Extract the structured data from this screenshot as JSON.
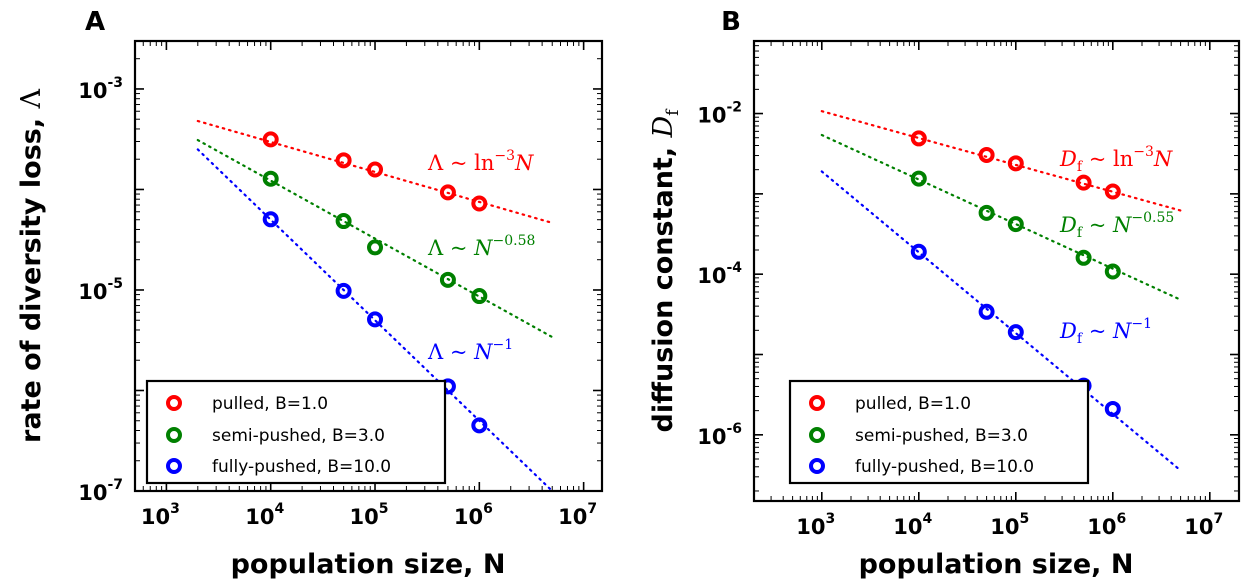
{
  "chart_data": [
    {
      "panel": "A",
      "type": "scatter",
      "scale": "log-log",
      "xlabel": "population size, N",
      "ylabel": "rate of diversity loss, Λ",
      "ylabel_text": "rate of diversity loss, ",
      "ylabel_symbol": "Λ",
      "xlim": [
        500,
        15000000
      ],
      "ylim": [
        1e-07,
        0.003
      ],
      "x_ticks": [
        {
          "base": "10",
          "exp": "3"
        },
        {
          "base": "10",
          "exp": "4"
        },
        {
          "base": "10",
          "exp": "5"
        },
        {
          "base": "10",
          "exp": "6"
        },
        {
          "base": "10",
          "exp": "7"
        }
      ],
      "y_ticks": [
        {
          "base": "10",
          "exp": "-3"
        },
        {
          "base": "10",
          "exp": "-5"
        },
        {
          "base": "10",
          "exp": "-7"
        }
      ],
      "y_tick_values": [
        0.001,
        1e-05,
        1e-07
      ],
      "grid": false,
      "legend_position": "bottom-left",
      "series": [
        {
          "name": "pulled, B=1.0",
          "color": "#ff0000",
          "x": [
            10000,
            50000,
            100000,
            500000,
            1000000
          ],
          "y": [
            0.000315,
            0.000195,
            0.000158,
            9.35e-05,
            7.25e-05
          ],
          "fit_x": [
            2000,
            5000000
          ],
          "fit_y": [
            0.00048,
            4.65e-05
          ],
          "annotation": {
            "lhs": "Λ",
            "op": "~",
            "fn": "ln",
            "sup": "−3",
            "rhs": "N"
          }
        },
        {
          "name": "semi-pushed, B=3.0",
          "color": "#008000",
          "x": [
            10000,
            50000,
            100000,
            500000,
            1000000
          ],
          "y": [
            0.000128,
            4.85e-05,
            2.65e-05,
            1.26e-05,
            8.7e-06
          ],
          "fit_x": [
            2000,
            5000000
          ],
          "fit_y": [
            0.00031,
            3.4e-06
          ],
          "annotation": {
            "lhs": "Λ",
            "op": "~",
            "rhs": "N",
            "sup": "−0.58"
          }
        },
        {
          "name": "fully-pushed, B=10.0",
          "color": "#0000ff",
          "x": [
            10000,
            50000,
            100000,
            500000,
            1000000
          ],
          "y": [
            5.05e-05,
            9.8e-06,
            5.1e-06,
            1.1e-06,
            4.5e-07
          ],
          "fit_x": [
            2000,
            5000000
          ],
          "fit_y": [
            0.00025,
            1e-07
          ],
          "annotation": {
            "lhs": "Λ",
            "op": "~",
            "rhs": "N",
            "sup": "−1"
          }
        }
      ]
    },
    {
      "panel": "B",
      "type": "scatter",
      "scale": "log-log",
      "xlabel": "population size, N",
      "ylabel": "diffusion constant, Df",
      "ylabel_text": "diffusion constant, ",
      "ylabel_symbol": "D",
      "ylabel_sub": "f",
      "xlim": [
        200,
        20000000
      ],
      "ylim": [
        1.5e-07,
        0.08
      ],
      "x_ticks": [
        {
          "base": "10",
          "exp": "3"
        },
        {
          "base": "10",
          "exp": "4"
        },
        {
          "base": "10",
          "exp": "5"
        },
        {
          "base": "10",
          "exp": "6"
        },
        {
          "base": "10",
          "exp": "7"
        }
      ],
      "y_ticks": [
        {
          "base": "10",
          "exp": "-2"
        },
        {
          "base": "10",
          "exp": "-4"
        },
        {
          "base": "10",
          "exp": "-6"
        }
      ],
      "y_tick_values": [
        0.01,
        0.0001,
        1e-06
      ],
      "grid": false,
      "legend_position": "bottom-left",
      "series": [
        {
          "name": "pulled, B=1.0",
          "color": "#ff0000",
          "x": [
            10000,
            50000,
            100000,
            500000,
            1000000
          ],
          "y": [
            0.0049,
            0.00305,
            0.0024,
            0.00138,
            0.00107
          ],
          "fit_x": [
            1000,
            5000000
          ],
          "fit_y": [
            0.0107,
            0.00062
          ],
          "annotation": {
            "lhs": "D",
            "lhs_sub": "f",
            "op": "~",
            "fn": "ln",
            "sup": "−3",
            "rhs": "N"
          }
        },
        {
          "name": "semi-pushed, B=3.0",
          "color": "#008000",
          "x": [
            10000,
            50000,
            100000,
            500000,
            1000000
          ],
          "y": [
            0.00155,
            0.00058,
            0.00042,
            0.00016,
            0.000108
          ],
          "fit_x": [
            1000,
            5000000
          ],
          "fit_y": [
            0.0054,
            4.8e-05
          ],
          "annotation": {
            "lhs": "D",
            "lhs_sub": "f",
            "op": "~",
            "rhs": "N",
            "sup": "−0.55"
          }
        },
        {
          "name": "fully-pushed, B=10.0",
          "color": "#0000ff",
          "x": [
            10000,
            50000,
            100000,
            500000,
            1000000
          ],
          "y": [
            0.00019,
            3.4e-05,
            1.9e-05,
            4.1e-06,
            2.1e-06
          ],
          "fit_x": [
            1000,
            5000000
          ],
          "fit_y": [
            0.0019,
            3.6e-07
          ],
          "annotation": {
            "lhs": "D",
            "lhs_sub": "f",
            "op": "~",
            "rhs": "N",
            "sup": "−1"
          }
        }
      ]
    }
  ]
}
